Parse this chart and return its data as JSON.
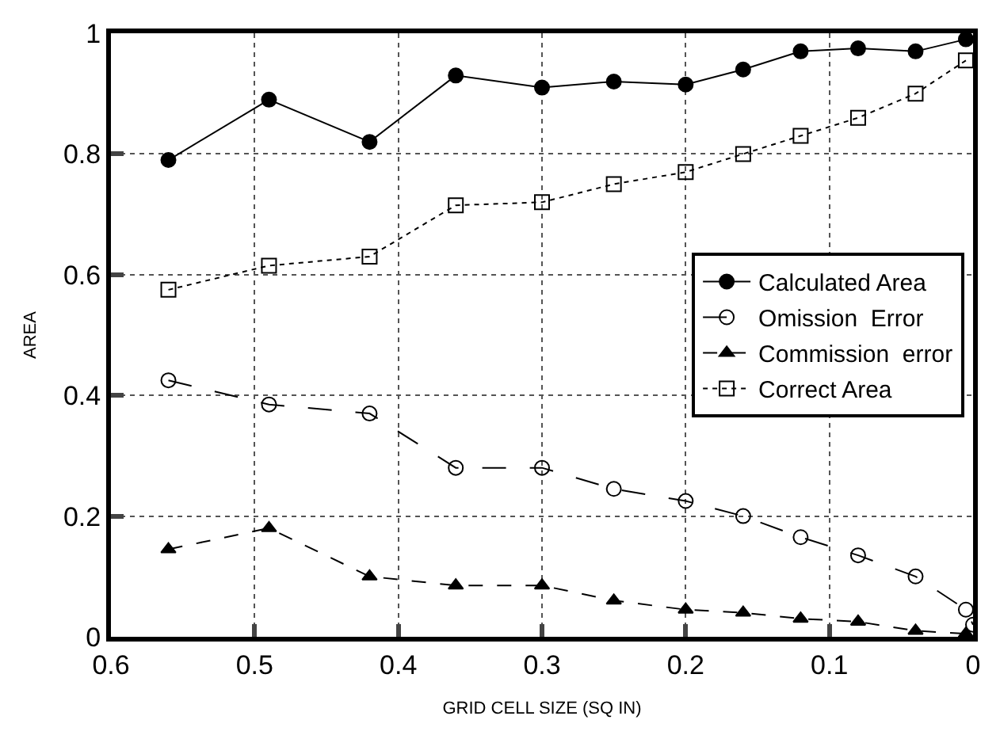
{
  "chart_data": {
    "type": "line",
    "xlabel": "GRID CELL SIZE (SQ IN)",
    "ylabel": "AREA",
    "x": [
      0.56,
      0.49,
      0.42,
      0.36,
      0.3,
      0.25,
      0.2,
      0.16,
      0.12,
      0.08,
      0.04,
      0.005
    ],
    "series": [
      {
        "name": "Calculated Area",
        "color": "#000000",
        "marker": "circle",
        "line_style": "solid",
        "values": [
          0.79,
          0.89,
          0.82,
          0.93,
          0.91,
          0.92,
          0.915,
          0.94,
          0.97,
          0.975,
          0.97,
          0.99
        ]
      },
      {
        "name": "Omission  Error",
        "color": "#000000",
        "marker": "circle-open",
        "line_style": "longdash",
        "x": [
          0.56,
          0.49,
          0.42,
          0.36,
          0.3,
          0.25,
          0.2,
          0.16,
          0.12,
          0.08,
          0.04,
          0.005,
          0.0
        ],
        "values": [
          0.425,
          0.385,
          0.37,
          0.28,
          0.28,
          0.245,
          0.225,
          0.2,
          0.165,
          0.135,
          0.1,
          0.045,
          0.02
        ]
      },
      {
        "name": "Commission  error",
        "color": "#000000",
        "marker": "triangle",
        "line_style": "dashed",
        "values": [
          0.145,
          0.18,
          0.1,
          0.085,
          0.085,
          0.06,
          0.045,
          0.04,
          0.03,
          0.025,
          0.01,
          0.005
        ]
      },
      {
        "name": "Correct Area",
        "color": "#000000",
        "marker": "square",
        "line_style": "dotted",
        "values": [
          0.575,
          0.615,
          0.63,
          0.715,
          0.72,
          0.75,
          0.77,
          0.8,
          0.83,
          0.86,
          0.9,
          0.955
        ]
      }
    ],
    "xlim": [
      0.6,
      0
    ],
    "xticks": [
      0.6,
      0.5,
      0.4,
      0.3,
      0.2,
      0.1,
      0
    ],
    "ylim": [
      0,
      1
    ],
    "yticks": [
      0,
      0.2,
      0.4,
      0.6,
      0.8,
      1
    ],
    "grid": true,
    "legend": "right"
  }
}
